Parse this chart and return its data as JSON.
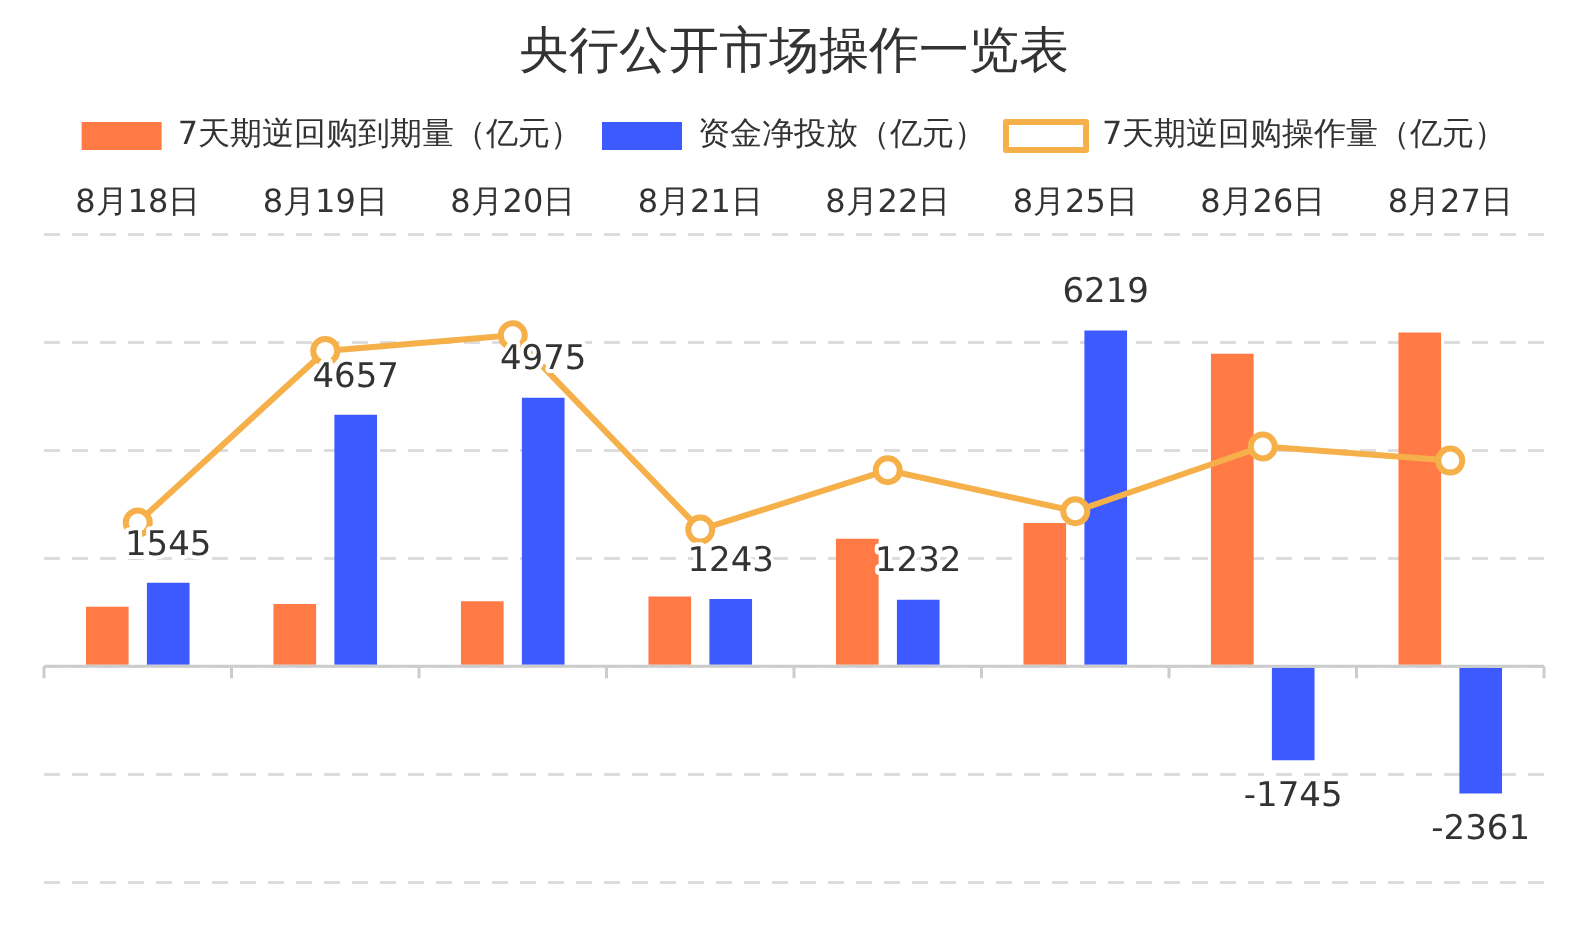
{
  "chart_data": {
    "type": "bar",
    "title": "央行公开市场操作一览表",
    "categories": [
      "8月18日",
      "8月19日",
      "8月20日",
      "8月21日",
      "8月22日",
      "8月25日",
      "8月26日",
      "8月27日"
    ],
    "series": [
      {
        "name": "7天期逆回购到期量（亿元）",
        "color": "#ff7a45",
        "values": [
          1100,
          1150,
          1200,
          1290,
          2360,
          2650,
          5790,
          6180
        ]
      },
      {
        "name": "资金净投放（亿元）",
        "color": "#3d5afe",
        "values": [
          1545,
          4657,
          4975,
          1243,
          1232,
          6219,
          -1745,
          -2361
        ],
        "value_labels": [
          "1545",
          "4657",
          "4975",
          "1243",
          "1232",
          "6219",
          "-1745",
          "-2361"
        ]
      },
      {
        "name": "7天期逆回购操作量（亿元）",
        "type": "line",
        "color": "#f5b04a",
        "marker": "circle",
        "line_style": "solid",
        "values": [
          2660,
          5840,
          6130,
          2530,
          3630,
          2870,
          4070,
          3810
        ]
      }
    ],
    "ylim": [
      -4000,
      8000
    ],
    "tick_labels": "x",
    "grid": "y",
    "legend": "top"
  }
}
